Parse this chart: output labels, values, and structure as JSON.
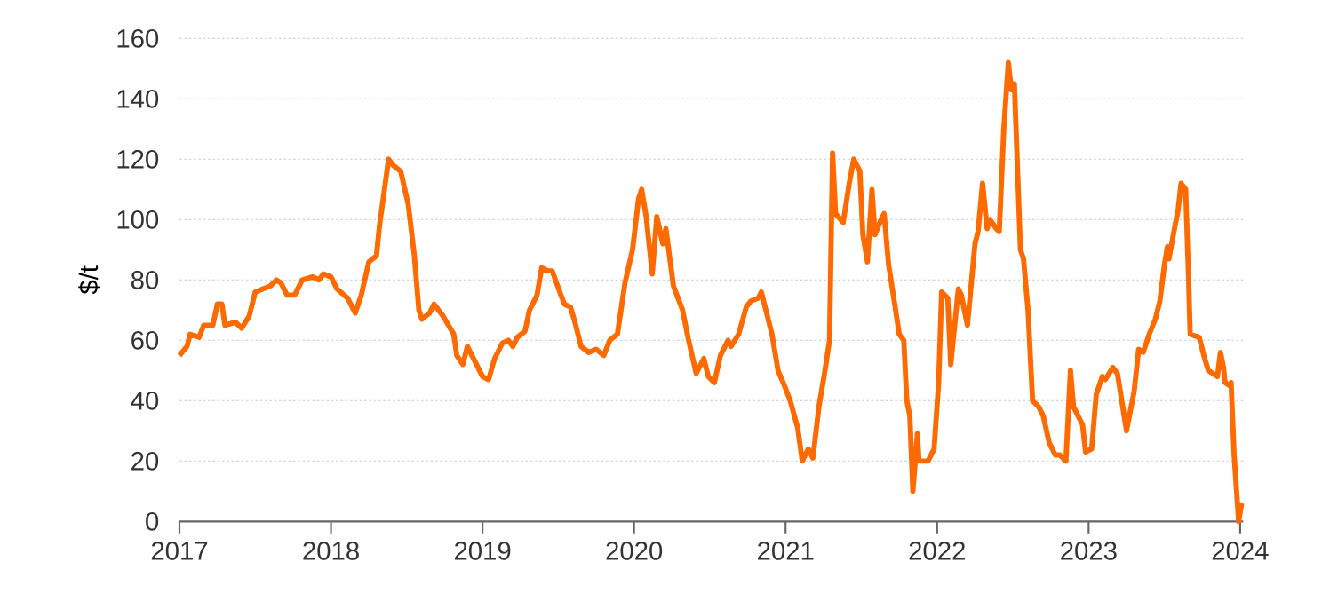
{
  "chart_data": {
    "type": "line",
    "ylabel": "$/t",
    "color": "#ff6a00",
    "grid": "y",
    "xlim": [
      2017,
      2024.02
    ],
    "ylim": [
      0,
      160
    ],
    "xticks": [
      2017,
      2018,
      2019,
      2020,
      2021,
      2022,
      2023,
      2024
    ],
    "yticks": [
      0,
      20,
      40,
      60,
      80,
      100,
      120,
      140,
      160
    ],
    "x": [
      2017.0,
      2017.05,
      2017.07,
      2017.13,
      2017.16,
      2017.22,
      2017.25,
      2017.28,
      2017.3,
      2017.37,
      2017.41,
      2017.46,
      2017.5,
      2017.55,
      2017.6,
      2017.64,
      2017.67,
      2017.71,
      2017.76,
      2017.81,
      2017.88,
      2017.92,
      2017.95,
      2018.0,
      2018.04,
      2018.11,
      2018.16,
      2018.2,
      2018.25,
      2018.3,
      2018.32,
      2018.38,
      2018.41,
      2018.46,
      2018.51,
      2018.55,
      2018.58,
      2018.6,
      2018.65,
      2018.68,
      2018.74,
      2018.81,
      2018.83,
      2018.87,
      2018.9,
      2018.95,
      2019.0,
      2019.04,
      2019.08,
      2019.13,
      2019.17,
      2019.2,
      2019.23,
      2019.28,
      2019.31,
      2019.36,
      2019.39,
      2019.43,
      2019.46,
      2019.51,
      2019.54,
      2019.58,
      2019.61,
      2019.65,
      2019.7,
      2019.75,
      2019.8,
      2019.84,
      2019.89,
      2019.94,
      2019.99,
      2020.03,
      2020.05,
      2020.08,
      2020.12,
      2020.15,
      2020.19,
      2020.21,
      2020.26,
      2020.32,
      2020.36,
      2020.41,
      2020.46,
      2020.49,
      2020.53,
      2020.57,
      2020.62,
      2020.64,
      2020.69,
      2020.74,
      2020.77,
      2020.82,
      2020.84,
      2020.88,
      2020.91,
      2020.95,
      2021.0,
      2021.03,
      2021.08,
      2021.11,
      2021.15,
      2021.18,
      2021.22,
      2021.26,
      2021.29,
      2021.31,
      2021.33,
      2021.38,
      2021.42,
      2021.45,
      2021.49,
      2021.51,
      2021.54,
      2021.57,
      2021.59,
      2021.63,
      2021.65,
      2021.68,
      2021.72,
      2021.75,
      2021.78,
      2021.8,
      2021.82,
      2021.84,
      2021.87,
      2021.88,
      2021.94,
      2021.98,
      2022.01,
      2022.03,
      2022.07,
      2022.09,
      2022.14,
      2022.16,
      2022.2,
      2022.25,
      2022.27,
      2022.3,
      2022.33,
      2022.35,
      2022.39,
      2022.41,
      2022.44,
      2022.47,
      2022.49,
      2022.51,
      2022.55,
      2022.57,
      2022.6,
      2022.63,
      2022.67,
      2022.7,
      2022.74,
      2022.78,
      2022.81,
      2022.85,
      2022.88,
      2022.9,
      2022.96,
      2022.98,
      2023.02,
      2023.05,
      2023.09,
      2023.11,
      2023.16,
      2023.19,
      2023.25,
      2023.3,
      2023.33,
      2023.36,
      2023.4,
      2023.44,
      2023.47,
      2023.5,
      2023.52,
      2023.53,
      2023.57,
      2023.59,
      2023.61,
      2023.64,
      2023.66,
      2023.67,
      2023.73,
      2023.76,
      2023.79,
      2023.82,
      2023.85,
      2023.87,
      2023.89,
      2023.9,
      2023.93,
      2023.94,
      2023.96,
      2023.99,
      2024.01
    ],
    "values": [
      55,
      58,
      62,
      61,
      65,
      65,
      72,
      72,
      65,
      66,
      64,
      68,
      76,
      77,
      78,
      80,
      79,
      75,
      75,
      80,
      81,
      80,
      82,
      81,
      77,
      74,
      69,
      75,
      86,
      88,
      98,
      120,
      118,
      116,
      105,
      88,
      70,
      67,
      69,
      72,
      68,
      62,
      55,
      52,
      58,
      53,
      48,
      47,
      54,
      59,
      60,
      58,
      61,
      63,
      70,
      75,
      84,
      83,
      83,
      76,
      72,
      71,
      66,
      58,
      56,
      57,
      55,
      60,
      62,
      79,
      90,
      107,
      110,
      101,
      82,
      101,
      92,
      97,
      78,
      70,
      60,
      49,
      54,
      48,
      46,
      55,
      60,
      58,
      62,
      71,
      73,
      74,
      76,
      68,
      62,
      50,
      44,
      40,
      31,
      20,
      24,
      21,
      38,
      50,
      60,
      122,
      102,
      99,
      112,
      120,
      116,
      95,
      86,
      110,
      95,
      100,
      102,
      85,
      72,
      62,
      60,
      40,
      35,
      10,
      29,
      20,
      20,
      24,
      46,
      76,
      74,
      52,
      77,
      75,
      65,
      92,
      96,
      112,
      97,
      100,
      97,
      96,
      130,
      152,
      143,
      145,
      90,
      87,
      70,
      40,
      38,
      35,
      26,
      22,
      22,
      20,
      50,
      38,
      32,
      23,
      24,
      42,
      48,
      47,
      51,
      49,
      30,
      43,
      57,
      56,
      62,
      67,
      73,
      85,
      91,
      87,
      98,
      103,
      112,
      110,
      80,
      62,
      61,
      55,
      50,
      49,
      48,
      56,
      51,
      46,
      45,
      46,
      22,
      0,
      6
    ]
  }
}
